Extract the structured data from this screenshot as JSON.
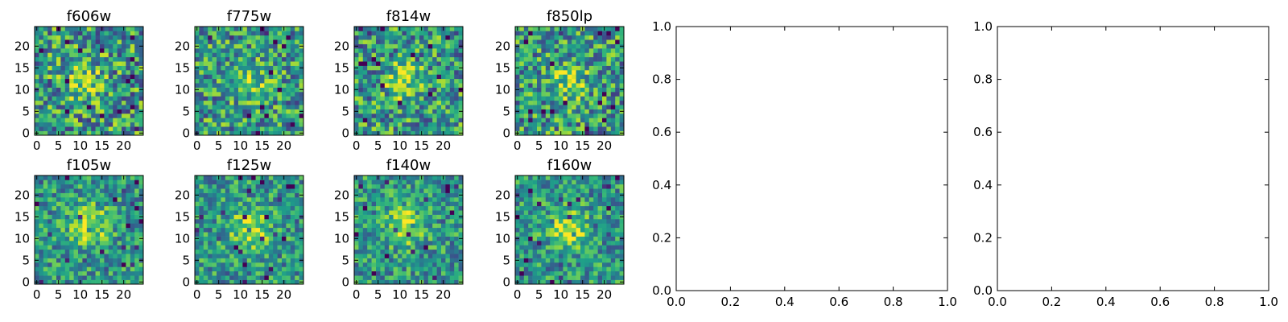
{
  "chart_data": {
    "type": "heatmap",
    "colormap": "viridis",
    "panels": [
      {
        "title": "f606w",
        "x_ticks": [
          "0",
          "5",
          "10",
          "15",
          "20"
        ],
        "y_ticks": [
          "0",
          "5",
          "10",
          "15",
          "20"
        ],
        "xlim": [
          -0.5,
          24.5
        ],
        "ylim": [
          -0.5,
          24.5
        ],
        "grid_size": [
          25,
          25
        ],
        "peak_center": [
          11,
          12
        ],
        "contrast": 0.25,
        "noise": 0.75
      },
      {
        "title": "f775w",
        "x_ticks": [
          "0",
          "5",
          "10",
          "15",
          "20"
        ],
        "y_ticks": [
          "0",
          "5",
          "10",
          "15",
          "20"
        ],
        "xlim": [
          -0.5,
          24.5
        ],
        "ylim": [
          -0.5,
          24.5
        ],
        "grid_size": [
          25,
          25
        ],
        "peak_center": [
          12,
          12
        ],
        "contrast": 0.3,
        "noise": 0.7
      },
      {
        "title": "f814w",
        "x_ticks": [
          "0",
          "5",
          "10",
          "15",
          "20"
        ],
        "y_ticks": [
          "0",
          "5",
          "10",
          "15",
          "20"
        ],
        "xlim": [
          -0.5,
          24.5
        ],
        "ylim": [
          -0.5,
          24.5
        ],
        "grid_size": [
          25,
          25
        ],
        "peak_center": [
          11,
          12
        ],
        "contrast": 0.3,
        "noise": 0.7
      },
      {
        "title": "f850lp",
        "x_ticks": [
          "0",
          "5",
          "10",
          "15",
          "20"
        ],
        "y_ticks": [
          "0",
          "5",
          "10",
          "15",
          "20"
        ],
        "xlim": [
          -0.5,
          24.5
        ],
        "ylim": [
          -0.5,
          24.5
        ],
        "grid_size": [
          25,
          25
        ],
        "peak_center": [
          12,
          12
        ],
        "contrast": 0.3,
        "noise": 0.7
      },
      {
        "title": "f105w",
        "x_ticks": [
          "0",
          "5",
          "10",
          "15",
          "20"
        ],
        "y_ticks": [
          "0",
          "5",
          "10",
          "15",
          "20"
        ],
        "xlim": [
          -0.5,
          24.5
        ],
        "ylim": [
          -0.5,
          24.5
        ],
        "grid_size": [
          25,
          25
        ],
        "peak_center": [
          12,
          13
        ],
        "contrast": 0.45,
        "noise": 0.55
      },
      {
        "title": "f125w",
        "x_ticks": [
          "0",
          "5",
          "10",
          "15",
          "20"
        ],
        "y_ticks": [
          "0",
          "5",
          "10",
          "15",
          "20"
        ],
        "xlim": [
          -0.5,
          24.5
        ],
        "ylim": [
          -0.5,
          24.5
        ],
        "grid_size": [
          25,
          25
        ],
        "peak_center": [
          12,
          12
        ],
        "contrast": 0.4,
        "noise": 0.55
      },
      {
        "title": "f140w",
        "x_ticks": [
          "0",
          "5",
          "10",
          "15",
          "20"
        ],
        "y_ticks": [
          "0",
          "5",
          "10",
          "15",
          "20"
        ],
        "xlim": [
          -0.5,
          24.5
        ],
        "ylim": [
          -0.5,
          24.5
        ],
        "grid_size": [
          25,
          25
        ],
        "peak_center": [
          11,
          13
        ],
        "contrast": 0.4,
        "noise": 0.55
      },
      {
        "title": "f160w",
        "x_ticks": [
          "0",
          "5",
          "10",
          "15",
          "20"
        ],
        "y_ticks": [
          "0",
          "5",
          "10",
          "15",
          "20"
        ],
        "xlim": [
          -0.5,
          24.5
        ],
        "ylim": [
          -0.5,
          24.5
        ],
        "grid_size": [
          25,
          25
        ],
        "peak_center": [
          12,
          12
        ],
        "contrast": 0.45,
        "noise": 0.55
      }
    ],
    "empty_axes": [
      {
        "x_ticks": [
          "0.0",
          "0.2",
          "0.4",
          "0.6",
          "0.8",
          "1.0"
        ],
        "y_ticks": [
          "0.0",
          "0.2",
          "0.4",
          "0.6",
          "0.8",
          "1.0"
        ],
        "xlim": [
          0,
          1
        ],
        "ylim": [
          0,
          1
        ]
      },
      {
        "x_ticks": [
          "0.0",
          "0.2",
          "0.4",
          "0.6",
          "0.8",
          "1.0"
        ],
        "y_ticks": [
          "0.0",
          "0.2",
          "0.4",
          "0.6",
          "0.8",
          "1.0"
        ],
        "xlim": [
          0,
          1
        ],
        "ylim": [
          0,
          1
        ]
      }
    ]
  }
}
